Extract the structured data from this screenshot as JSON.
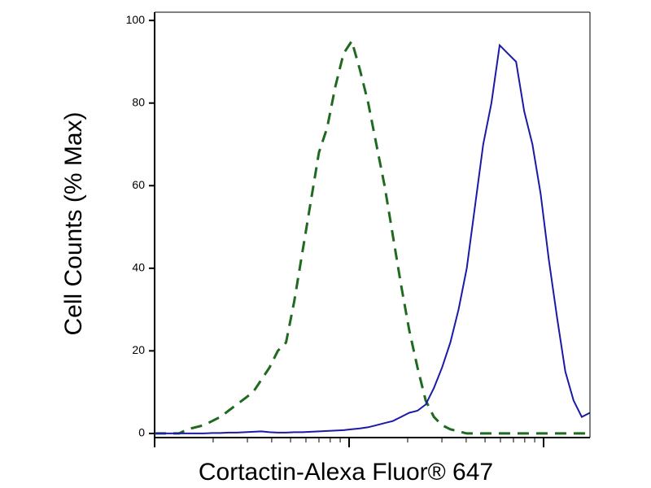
{
  "chart_data": {
    "type": "line",
    "x_label": "Cortactin-Alexa Fluor® 647",
    "y_label": "Cell Counts (% Max)",
    "ylim": [
      -1,
      102
    ],
    "yticks": [
      0,
      20,
      40,
      60,
      80,
      100
    ],
    "x_scale": "log",
    "series": [
      {
        "color": "#1e6a1e",
        "dash": true,
        "values": [
          0,
          0,
          0,
          0,
          1,
          1.5,
          2,
          3,
          4,
          5.5,
          7,
          8.5,
          10,
          13,
          16,
          20,
          22,
          32,
          44,
          56,
          68,
          74,
          84,
          92,
          95,
          88,
          80,
          70,
          60,
          48,
          36,
          25,
          16,
          8,
          4,
          2,
          1,
          0.5,
          0,
          0,
          0,
          0,
          0,
          0,
          0,
          0,
          0,
          0,
          0,
          0,
          0,
          0,
          0,
          0
        ]
      },
      {
        "color": "#1a1aa8",
        "dash": false,
        "values": [
          0,
          0,
          0,
          0,
          0,
          0,
          0,
          0.1,
          0.1,
          0.2,
          0.2,
          0.3,
          0.4,
          0.5,
          0.3,
          0.2,
          0.2,
          0.3,
          0.3,
          0.4,
          0.5,
          0.6,
          0.7,
          0.8,
          1,
          1.2,
          1.5,
          2,
          2.5,
          3,
          4,
          5,
          5.5,
          7,
          11,
          16,
          22,
          30,
          40,
          55,
          70,
          80,
          94,
          92,
          90,
          78,
          70,
          58,
          42,
          28,
          15,
          8,
          4,
          5
        ]
      }
    ]
  }
}
